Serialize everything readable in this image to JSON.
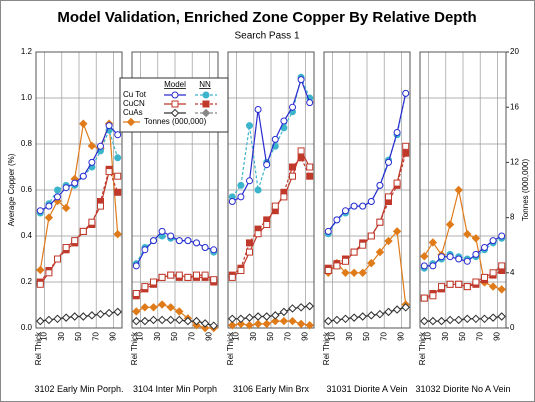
{
  "chart_data": {
    "type": "line",
    "title": "Model Validation, Enriched Zone Copper By Relative Depth",
    "subtitle": "Search Pass 1",
    "ylabel": "Average Copper (%)",
    "y2label": "Tonnes (000,000)",
    "xlabel": "Rel Thick",
    "x": [
      5,
      15,
      25,
      35,
      45,
      55,
      65,
      75,
      85,
      95
    ],
    "xlim": [
      0,
      100
    ],
    "xticks": [
      10,
      30,
      50,
      70,
      90
    ],
    "ylim": [
      0,
      1.2
    ],
    "yticks": [
      {
        "value": 0,
        "label": "0.0"
      },
      0.2,
      0.4,
      0.6,
      0.8,
      {
        "value": 1,
        "label": "1.0"
      },
      1.2
    ],
    "y2lim": [
      0,
      20
    ],
    "y2ticks": [
      0,
      4,
      8,
      12,
      16,
      20
    ],
    "grid": true,
    "legend": {
      "headers": [
        "Model",
        "NN"
      ]
    },
    "groups": [
      {
        "name": "Cu Tot",
        "marker": "circle",
        "model_color": "#2a2ad0",
        "nn_color": "#3cb4cc"
      },
      {
        "name": "CuCN",
        "marker": "square",
        "model_color": "#c0392b",
        "nn_color": "#c0392b"
      },
      {
        "name": "CuAs",
        "marker": "diamond",
        "model_color": "#333333",
        "nn_color": "#888888"
      }
    ],
    "tonnes": {
      "name": "Tonnes (000,000)",
      "color": "#e07b1a",
      "axis": "y2"
    },
    "panels": [
      {
        "name": "3102 Early Min Porph.",
        "model": [
          [
            0.51,
            0.53,
            0.57,
            0.61,
            0.63,
            0.66,
            0.72,
            0.79,
            0.88,
            0.84
          ],
          [
            0.19,
            0.24,
            0.3,
            0.35,
            0.38,
            0.42,
            0.46,
            0.53,
            0.68,
            0.66
          ],
          [
            0.03,
            0.035,
            0.04,
            0.045,
            0.05,
            0.05,
            0.055,
            0.06,
            0.065,
            0.07
          ]
        ],
        "nn": [
          [
            0.5,
            0.54,
            0.6,
            0.62,
            0.62,
            0.66,
            0.7,
            0.77,
            0.86,
            0.74
          ],
          [
            0.2,
            0.25,
            0.3,
            0.34,
            0.37,
            0.42,
            0.45,
            0.55,
            0.69,
            0.59
          ],
          [
            0.03,
            0.035,
            0.04,
            0.045,
            0.05,
            0.05,
            0.055,
            0.06,
            0.065,
            0.07
          ]
        ],
        "tonnes": [
          4.2,
          8,
          9.2,
          8.7,
          10.8,
          14.8,
          13.2,
          13,
          14.8,
          6.8
        ]
      },
      {
        "name": "3104 Inter Min Porph",
        "model": [
          [
            0.27,
            0.34,
            0.38,
            0.42,
            0.4,
            0.38,
            0.38,
            0.37,
            0.35,
            0.34
          ],
          [
            0.15,
            0.18,
            0.2,
            0.22,
            0.23,
            0.23,
            0.22,
            0.23,
            0.23,
            0.21
          ],
          [
            0.03,
            0.03,
            0.035,
            0.035,
            0.035,
            0.035,
            0.03,
            0.03,
            0.02,
            0.01
          ]
        ],
        "nn": [
          [
            0.28,
            0.35,
            0.38,
            0.4,
            0.39,
            0.38,
            0.38,
            0.37,
            0.35,
            0.33
          ],
          [
            0.14,
            0.17,
            0.19,
            0.22,
            0.23,
            0.22,
            0.22,
            0.22,
            0.22,
            0.2
          ],
          [
            0.03,
            0.03,
            0.035,
            0.035,
            0.035,
            0.035,
            0.03,
            0.03,
            0.02,
            0.01
          ]
        ],
        "tonnes": [
          1.2,
          1.5,
          1.5,
          1.7,
          1.5,
          1.2,
          0.7,
          0.2,
          0,
          0
        ]
      },
      {
        "name": "3106 Early Min Brx",
        "model": [
          [
            0.55,
            0.57,
            0.64,
            0.95,
            0.71,
            0.82,
            0.9,
            0.96,
            1.08,
            0.98
          ],
          [
            0.22,
            0.25,
            0.33,
            0.41,
            0.45,
            0.53,
            0.57,
            0.66,
            0.77,
            0.7
          ],
          [
            0.04,
            0.04,
            0.045,
            0.05,
            0.05,
            0.055,
            0.07,
            0.085,
            0.09,
            0.095
          ]
        ],
        "nn": [
          [
            0.57,
            0.62,
            0.88,
            0.6,
            0.72,
            0.79,
            0.87,
            0.94,
            1.09,
            1.0
          ],
          [
            0.23,
            0.26,
            0.37,
            0.43,
            0.47,
            0.51,
            0.59,
            0.7,
            0.74,
            0.66
          ],
          [
            0.04,
            0.04,
            0.045,
            0.05,
            0.05,
            0.055,
            0.07,
            0.085,
            0.09,
            0.095
          ]
        ],
        "tonnes": [
          0.2,
          0.3,
          0.2,
          0.3,
          0.3,
          0.5,
          0.5,
          0.5,
          0.3,
          0.2
        ]
      },
      {
        "name": "31031 Diorite A Vein",
        "model": [
          [
            0.42,
            0.47,
            0.51,
            0.53,
            0.53,
            0.55,
            0.62,
            0.72,
            0.85,
            1.02
          ],
          [
            0.25,
            0.27,
            0.29,
            0.33,
            0.36,
            0.4,
            0.46,
            0.57,
            0.63,
            0.79
          ],
          [
            0.03,
            0.035,
            0.04,
            0.045,
            0.05,
            0.055,
            0.06,
            0.07,
            0.08,
            0.09
          ]
        ],
        "nn": [
          [
            0.41,
            0.47,
            0.5,
            0.53,
            0.53,
            0.55,
            0.62,
            0.73,
            0.84,
            1.02
          ],
          [
            0.26,
            0.28,
            0.3,
            0.33,
            0.37,
            0.4,
            0.46,
            0.55,
            0.62,
            0.76
          ],
          [
            0.03,
            0.035,
            0.04,
            0.045,
            0.05,
            0.055,
            0.06,
            0.07,
            0.08,
            0.09
          ]
        ],
        "tonnes": [
          4,
          4.7,
          4,
          4,
          4,
          4.7,
          5.5,
          6.3,
          7,
          1.7
        ]
      },
      {
        "name": "31032 Diorite No A Vein",
        "model": [
          [
            0.27,
            0.27,
            0.31,
            0.31,
            0.3,
            0.29,
            0.32,
            0.35,
            0.38,
            0.4
          ],
          [
            0.13,
            0.14,
            0.18,
            0.19,
            0.19,
            0.18,
            0.2,
            0.22,
            0.24,
            0.27
          ],
          [
            0.03,
            0.03,
            0.03,
            0.035,
            0.035,
            0.04,
            0.04,
            0.04,
            0.045,
            0.05
          ]
        ],
        "nn": [
          [
            0.26,
            0.28,
            0.3,
            0.32,
            0.31,
            0.3,
            0.31,
            0.34,
            0.37,
            0.39
          ],
          [
            0.13,
            0.15,
            0.17,
            0.19,
            0.19,
            0.18,
            0.19,
            0.21,
            0.23,
            0.25
          ],
          [
            0.03,
            0.03,
            0.03,
            0.035,
            0.035,
            0.04,
            0.04,
            0.04,
            0.045,
            0.05
          ]
        ],
        "tonnes": [
          5.2,
          6.2,
          5.3,
          7.5,
          10,
          6.8,
          6.5,
          3.3,
          3,
          2.8
        ]
      }
    ]
  }
}
